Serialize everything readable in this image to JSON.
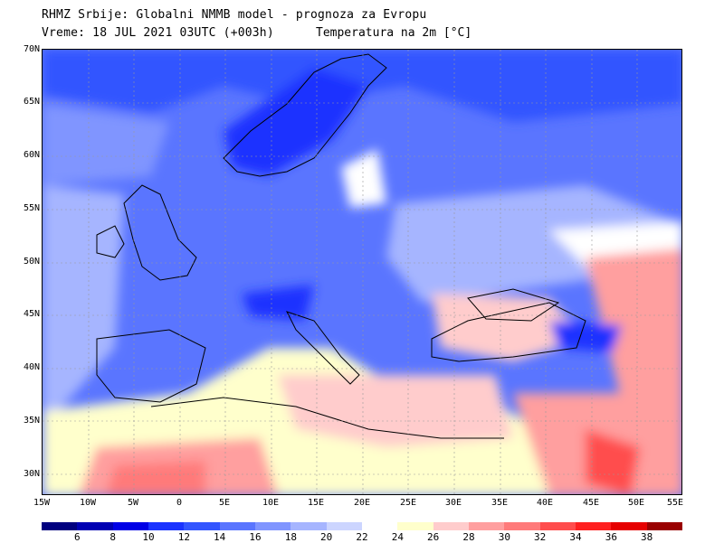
{
  "header": {
    "line1": "RHMZ Srbije: Globalni NMMB model - prognoza za Evropu",
    "line2": "Vreme: 18 JUL 2021 03UTC (+003h)",
    "parameter": "Temperatura na 2m [°C]"
  },
  "axes": {
    "lat_labels": [
      "70N",
      "65N",
      "60N",
      "55N",
      "50N",
      "45N",
      "40N",
      "35N",
      "30N"
    ],
    "lon_labels": [
      "15W",
      "10W",
      "5W",
      "0",
      "5E",
      "10E",
      "15E",
      "20E",
      "25E",
      "30E",
      "35E",
      "40E",
      "45E",
      "50E",
      "55E"
    ]
  },
  "colorbar": {
    "colors": [
      "#00007f",
      "#0000b3",
      "#0000e6",
      "#1a33ff",
      "#3355ff",
      "#5a75ff",
      "#8095ff",
      "#a6b5ff",
      "#ccd5ff",
      "#ffffff",
      "#ffffcc",
      "#ffcccc",
      "#ff9f9f",
      "#ff7a7a",
      "#ff4d4d",
      "#ff2020",
      "#e60000",
      "#990000"
    ],
    "labels": [
      "6",
      "8",
      "10",
      "12",
      "14",
      "16",
      "18",
      "20",
      "22",
      "24",
      "26",
      "28",
      "30",
      "32",
      "34",
      "36",
      "38"
    ]
  }
}
